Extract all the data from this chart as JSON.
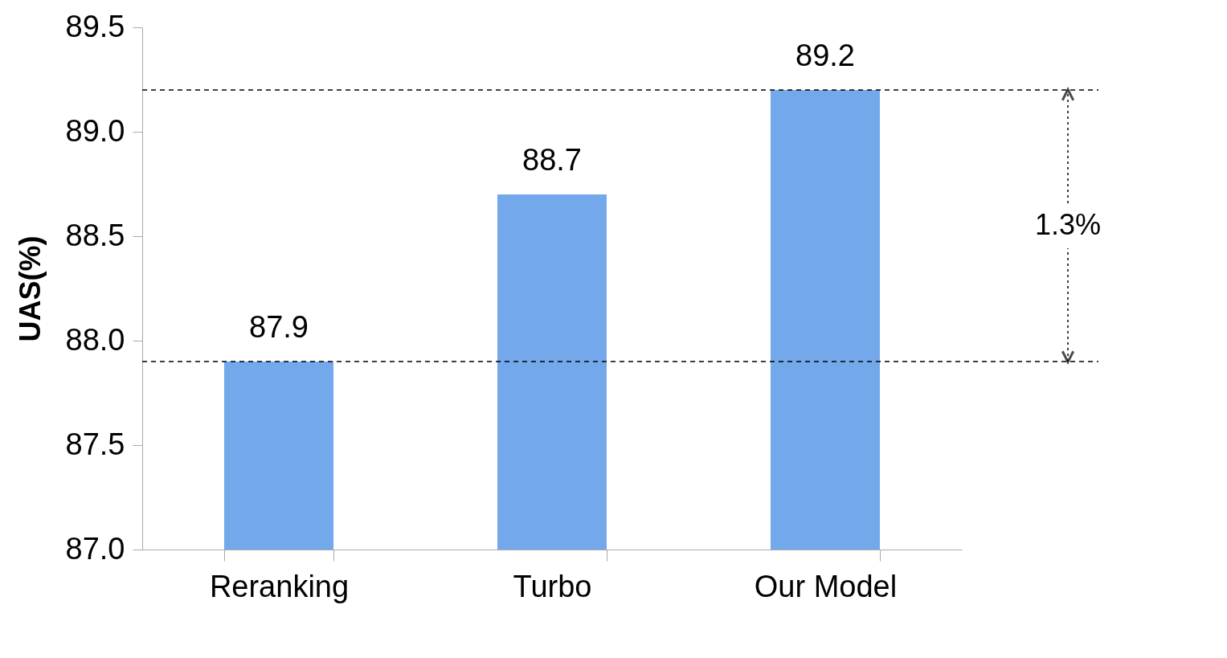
{
  "chart_data": {
    "type": "bar",
    "ylabel": "UAS(%)",
    "categories": [
      "Reranking",
      "Turbo",
      "Our Model"
    ],
    "values": [
      87.9,
      88.7,
      89.2
    ],
    "color": "#73a9ea",
    "ylim": [
      87.0,
      89.5
    ],
    "yticks": [
      {
        "value": 87.0,
        "label": "87.0"
      },
      {
        "value": 87.5,
        "label": "87.5"
      },
      {
        "value": 88.0,
        "label": "88.0"
      },
      {
        "value": 88.5,
        "label": "88.5"
      },
      {
        "value": 89.0,
        "label": "89.0"
      },
      {
        "value": 89.5,
        "label": "89.5"
      }
    ],
    "grid": false,
    "data_labels": true,
    "ref_lines": [
      {
        "axis": "y",
        "value": 87.9,
        "line_style": "dashed"
      },
      {
        "axis": "y",
        "value": 89.2,
        "line_style": "dashed"
      }
    ],
    "annotations": [
      {
        "text": "1.3%",
        "y": 89.2
      }
    ]
  }
}
